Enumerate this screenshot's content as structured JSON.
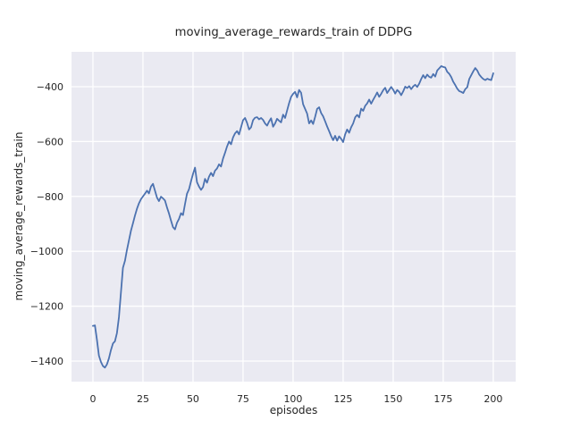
{
  "chart_data": {
    "type": "line",
    "title": "moving_average_rewards_train of DDPG",
    "xlabel": "episodes",
    "ylabel": "moving_average_rewards_train",
    "x_ticks": [
      0,
      25,
      50,
      75,
      100,
      125,
      150,
      175,
      200
    ],
    "y_ticks": [
      -400,
      -600,
      -800,
      -1000,
      -1200,
      -1400
    ],
    "xlim": [
      -10.7,
      211.2
    ],
    "ylim": [
      -1475,
      -273
    ],
    "grid": true,
    "legend": "none",
    "style": {
      "figure_bg": "#ffffff",
      "axes_bg": "#eaeaf2",
      "grid_color": "#ffffff",
      "line_color": "#4c72b0",
      "text_color": "#262626"
    },
    "series": [
      {
        "name": "moving_average_rewards_train",
        "x_start": 0,
        "x_step": 1,
        "values": [
          -1272,
          -1270,
          -1322,
          -1380,
          -1403,
          -1418,
          -1424,
          -1412,
          -1390,
          -1360,
          -1336,
          -1328,
          -1298,
          -1240,
          -1150,
          -1060,
          -1035,
          -995,
          -960,
          -925,
          -898,
          -870,
          -845,
          -825,
          -810,
          -800,
          -790,
          -779,
          -789,
          -764,
          -754,
          -779,
          -804,
          -817,
          -801,
          -807,
          -815,
          -840,
          -862,
          -888,
          -912,
          -920,
          -896,
          -882,
          -861,
          -868,
          -828,
          -790,
          -774,
          -745,
          -718,
          -695,
          -748,
          -764,
          -776,
          -766,
          -736,
          -750,
          -728,
          -714,
          -726,
          -706,
          -698,
          -683,
          -691,
          -662,
          -641,
          -618,
          -600,
          -610,
          -585,
          -570,
          -562,
          -574,
          -548,
          -522,
          -514,
          -532,
          -556,
          -548,
          -522,
          -513,
          -511,
          -519,
          -514,
          -521,
          -534,
          -542,
          -527,
          -515,
          -546,
          -534,
          -517,
          -524,
          -530,
          -502,
          -514,
          -487,
          -460,
          -437,
          -426,
          -419,
          -439,
          -412,
          -422,
          -464,
          -481,
          -498,
          -534,
          -523,
          -536,
          -510,
          -481,
          -475,
          -496,
          -508,
          -526,
          -545,
          -562,
          -580,
          -595,
          -579,
          -597,
          -581,
          -590,
          -602,
          -574,
          -556,
          -568,
          -548,
          -534,
          -512,
          -503,
          -512,
          -480,
          -488,
          -470,
          -461,
          -447,
          -462,
          -448,
          -435,
          -421,
          -437,
          -426,
          -413,
          -404,
          -423,
          -412,
          -401,
          -411,
          -425,
          -412,
          -419,
          -431,
          -417,
          -400,
          -405,
          -398,
          -409,
          -399,
          -393,
          -401,
          -389,
          -372,
          -358,
          -369,
          -356,
          -364,
          -367,
          -354,
          -363,
          -341,
          -333,
          -325,
          -328,
          -330,
          -346,
          -353,
          -365,
          -382,
          -394,
          -407,
          -416,
          -419,
          -423,
          -409,
          -402,
          -372,
          -358,
          -344,
          -332,
          -341,
          -356,
          -365,
          -372,
          -376,
          -371,
          -374,
          -376,
          -351
        ]
      }
    ]
  }
}
